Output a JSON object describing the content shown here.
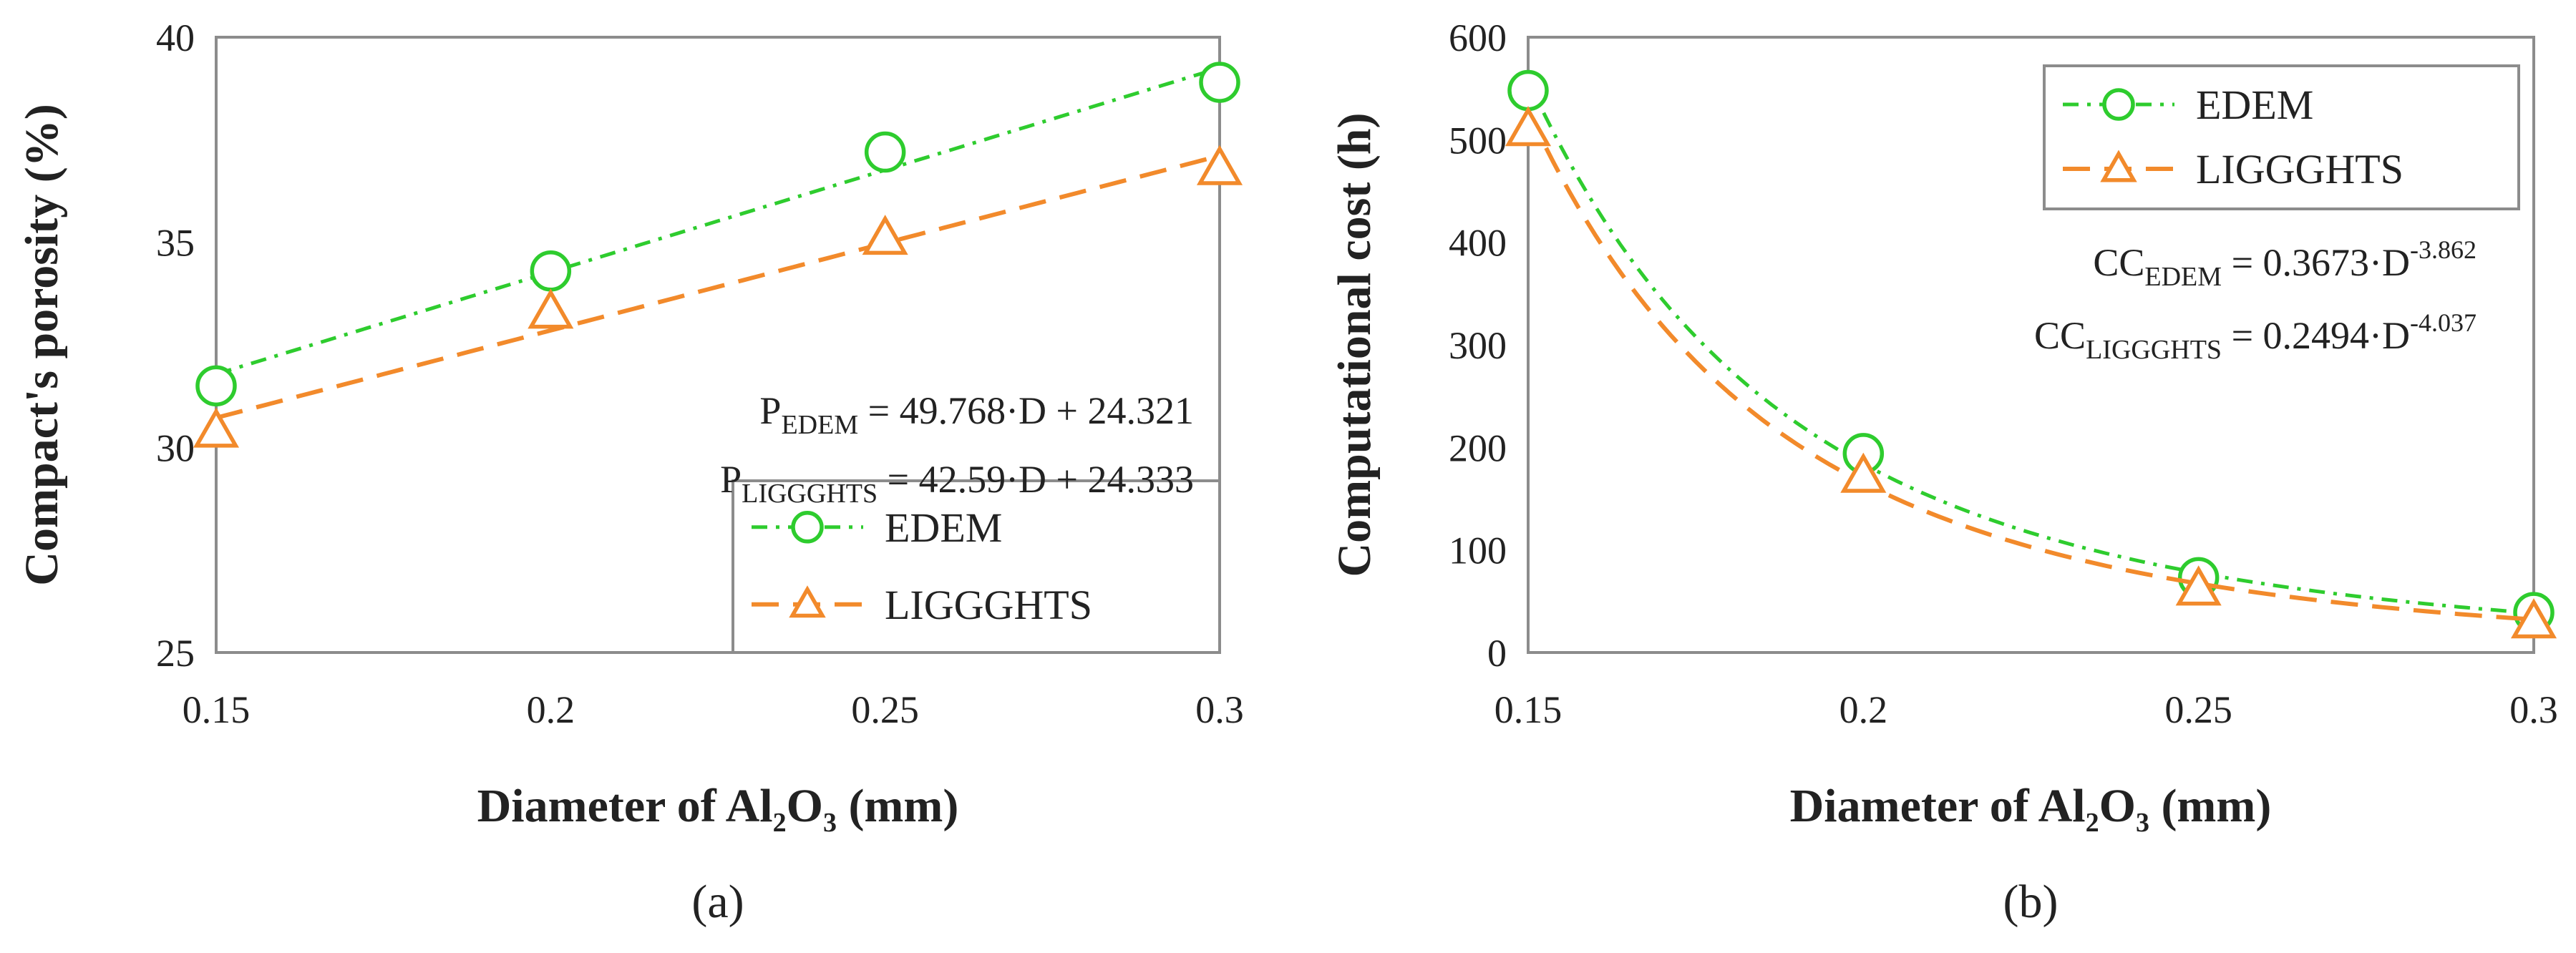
{
  "colors": {
    "edem": "#2ecc2e",
    "liggghts": "#f28a2b",
    "frame": "#8c8c8c",
    "text": "#222222"
  },
  "chart_data": [
    {
      "type": "line",
      "panel_label": "(a)",
      "x_label_parts": [
        "Diameter of Al",
        "2",
        "O",
        "3",
        " (mm)"
      ],
      "y_label": "Compact's porosity (%)",
      "xlim": [
        0.15,
        0.3
      ],
      "ylim": [
        25,
        40
      ],
      "x_ticks": [
        "0.15",
        "0.2",
        "0.25",
        "0.3"
      ],
      "y_ticks": [
        "25",
        "30",
        "35",
        "40"
      ],
      "grid": false,
      "legend_position": "bottom-right",
      "series": [
        {
          "name": "EDEM",
          "marker": "circle",
          "line_style": "dash-dot",
          "x": [
            0.15,
            0.2,
            0.25,
            0.3
          ],
          "y": [
            31.5,
            34.3,
            37.2,
            38.9
          ],
          "fit": {
            "type": "linear",
            "slope": 49.768,
            "intercept": 24.321
          }
        },
        {
          "name": "LIGGGHTS",
          "marker": "triangle",
          "line_style": "dashed",
          "x": [
            0.15,
            0.2,
            0.25,
            0.3
          ],
          "y": [
            30.4,
            33.3,
            35.1,
            36.8
          ],
          "fit": {
            "type": "linear",
            "slope": 42.59,
            "intercept": 24.333
          }
        }
      ],
      "equations": [
        {
          "lead": "P",
          "sub": "EDEM",
          "rest": " = 49.768·D + 24.321"
        },
        {
          "lead": "P",
          "sub": "LIGGGHTS",
          "rest": " = 42.59·D + 24.333"
        }
      ]
    },
    {
      "type": "line",
      "panel_label": "(b)",
      "x_label_parts": [
        "Diameter of Al",
        "2",
        "O",
        "3",
        " (mm)"
      ],
      "y_label": "Computational cost (h)",
      "xlim": [
        0.15,
        0.3
      ],
      "ylim": [
        0,
        600
      ],
      "x_ticks": [
        "0.15",
        "0.2",
        "0.25",
        "0.3"
      ],
      "y_ticks": [
        "0",
        "100",
        "200",
        "300",
        "400",
        "500",
        "600"
      ],
      "grid": false,
      "legend_position": "top-right",
      "series": [
        {
          "name": "EDEM",
          "marker": "circle",
          "line_style": "dash-dot",
          "x": [
            0.15,
            0.2,
            0.25,
            0.3
          ],
          "y": [
            548,
            194,
            73,
            39
          ],
          "fit": {
            "type": "power",
            "coef": 0.3673,
            "exp": -3.862
          }
        },
        {
          "name": "LIGGGHTS",
          "marker": "triangle",
          "line_style": "dashed",
          "x": [
            0.15,
            0.2,
            0.25,
            0.3
          ],
          "y": [
            510,
            172,
            62,
            30
          ],
          "fit": {
            "type": "power",
            "coef": 0.2494,
            "exp": -4.037
          }
        }
      ],
      "equations": [
        {
          "lead": "CC",
          "sub": "EDEM",
          "rest": " = 0.3673·D",
          "sup": "-3.862"
        },
        {
          "lead": "CC",
          "sub": "LIGGGHTS",
          "rest": " = 0.2494·D",
          "sup": "-4.037"
        }
      ]
    }
  ]
}
